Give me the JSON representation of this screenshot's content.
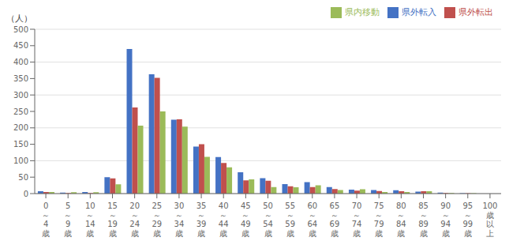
{
  "chart_data": {
    "type": "bar",
    "categories": [
      "0\n～\n4\n歳",
      "5\n～\n9\n歳",
      "10\n～\n14\n歳",
      "15\n～\n19\n歳",
      "20\n～\n24\n歳",
      "25\n～\n29\n歳",
      "30\n～\n34\n歳",
      "35\n～\n39\n歳",
      "40\n～\n44\n歳",
      "45\n～\n49\n歳",
      "50\n～\n54\n歳",
      "55\n～\n59\n歳",
      "60\n～\n64\n歳",
      "65\n～\n69\n歳",
      "70\n～\n74\n歳",
      "75\n～\n79\n歳",
      "80\n～\n84\n歳",
      "85\n～\n89\n歳",
      "90\n～\n94\n歳",
      "95\n～\n99\n歳",
      "100\n歳\n以\n上"
    ],
    "series": [
      {
        "name": "県外転入",
        "color": "#4472c4",
        "values": [
          7,
          3,
          5,
          50,
          440,
          363,
          225,
          143,
          111,
          65,
          47,
          29,
          35,
          20,
          12,
          11,
          10,
          6,
          3,
          1,
          0
        ]
      },
      {
        "name": "県外転出",
        "color": "#c0504d",
        "values": [
          5,
          2,
          2,
          46,
          262,
          352,
          226,
          150,
          93,
          40,
          39,
          22,
          20,
          14,
          9,
          8,
          7,
          7,
          2,
          1,
          0
        ]
      },
      {
        "name": "県内移動",
        "color": "#9bbb59",
        "values": [
          5,
          4,
          4,
          28,
          207,
          250,
          204,
          112,
          80,
          43,
          20,
          19,
          25,
          11,
          13,
          5,
          5,
          7,
          2,
          1,
          0
        ]
      }
    ],
    "ylabel": "（人）",
    "ylim": [
      0,
      500
    ],
    "yticks": [
      0,
      50,
      100,
      150,
      200,
      250,
      300,
      350,
      400,
      450,
      500
    ],
    "grid": true,
    "legend": "upper right"
  }
}
